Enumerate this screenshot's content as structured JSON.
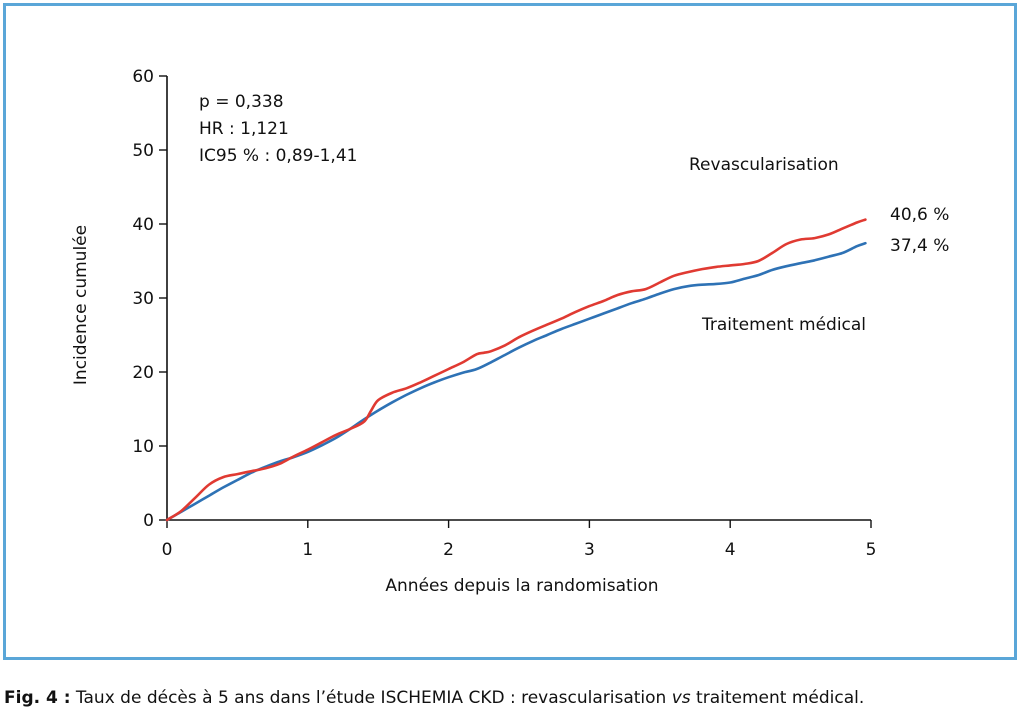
{
  "chart_data": {
    "type": "line",
    "xlabel": "Années depuis la randomisation",
    "ylabel": "Incidence cumulée",
    "xlim": [
      0,
      5
    ],
    "ylim": [
      0,
      60
    ],
    "xticks": [
      "0",
      "1",
      "2",
      "3",
      "4",
      "5"
    ],
    "yticks": [
      "0",
      "10",
      "20",
      "30",
      "40",
      "50",
      "60"
    ],
    "grid": false,
    "stats": [
      "p = 0,338",
      "HR : 1,121",
      "IC95 % : 0,89-1,41"
    ],
    "series": [
      {
        "name": "Revascularisation",
        "color": "#e03a32",
        "end_label": "40,6 %",
        "x": [
          0,
          0.1,
          0.2,
          0.3,
          0.4,
          0.5,
          0.6,
          0.7,
          0.8,
          0.9,
          1.0,
          1.1,
          1.2,
          1.3,
          1.4,
          1.45,
          1.5,
          1.6,
          1.7,
          1.8,
          1.9,
          2.0,
          2.1,
          2.2,
          2.25,
          2.3,
          2.4,
          2.5,
          2.6,
          2.7,
          2.8,
          2.9,
          3.0,
          3.1,
          3.2,
          3.3,
          3.4,
          3.5,
          3.6,
          3.7,
          3.8,
          3.9,
          4.0,
          4.1,
          4.2,
          4.3,
          4.4,
          4.5,
          4.6,
          4.7,
          4.8,
          4.9,
          4.96
        ],
        "y": [
          0,
          1.2,
          3.0,
          4.8,
          5.8,
          6.2,
          6.6,
          7.0,
          7.6,
          8.6,
          9.5,
          10.5,
          11.5,
          12.3,
          13.3,
          14.8,
          16.2,
          17.2,
          17.8,
          18.6,
          19.5,
          20.4,
          21.3,
          22.4,
          22.6,
          22.8,
          23.6,
          24.7,
          25.6,
          26.4,
          27.2,
          28.1,
          28.9,
          29.6,
          30.4,
          30.9,
          31.2,
          32.1,
          33.0,
          33.5,
          33.9,
          34.2,
          34.4,
          34.6,
          35.0,
          36.1,
          37.3,
          37.9,
          38.1,
          38.6,
          39.4,
          40.2,
          40.6
        ]
      },
      {
        "name": "Traitement médical",
        "color": "#2e72b5",
        "end_label": "37,4 %",
        "x": [
          0,
          0.1,
          0.2,
          0.3,
          0.4,
          0.5,
          0.6,
          0.7,
          0.8,
          0.9,
          1.0,
          1.1,
          1.2,
          1.3,
          1.4,
          1.5,
          1.6,
          1.7,
          1.8,
          1.9,
          2.0,
          2.1,
          2.2,
          2.3,
          2.4,
          2.5,
          2.6,
          2.7,
          2.8,
          2.9,
          3.0,
          3.1,
          3.2,
          3.3,
          3.4,
          3.5,
          3.6,
          3.7,
          3.8,
          3.9,
          4.0,
          4.1,
          4.2,
          4.3,
          4.4,
          4.5,
          4.6,
          4.7,
          4.8,
          4.9,
          4.96
        ],
        "y": [
          0,
          1.1,
          2.2,
          3.3,
          4.4,
          5.4,
          6.4,
          7.2,
          7.9,
          8.5,
          9.2,
          10.1,
          11.1,
          12.3,
          13.6,
          14.8,
          15.9,
          16.9,
          17.8,
          18.6,
          19.3,
          19.9,
          20.4,
          21.3,
          22.3,
          23.3,
          24.2,
          25.0,
          25.8,
          26.5,
          27.2,
          27.9,
          28.6,
          29.3,
          29.9,
          30.6,
          31.2,
          31.6,
          31.8,
          31.9,
          32.1,
          32.6,
          33.1,
          33.8,
          34.3,
          34.7,
          35.1,
          35.6,
          36.1,
          37.0,
          37.4
        ]
      }
    ]
  },
  "caption": {
    "label": "Fig. 4 :",
    "text_before": " Taux de décès à 5 ans dans l’étude ISCHEMIA CKD : revascularisation ",
    "italic": "vs",
    "text_after": " traitement médical."
  }
}
